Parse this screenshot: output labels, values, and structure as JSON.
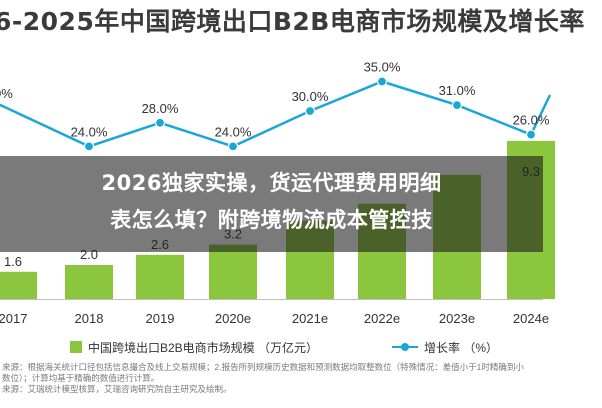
{
  "chart_data": {
    "type": "bar",
    "title": "6-2025年中国跨境出口B2B电商市场规模及增长率",
    "categories": [
      "2017",
      "2018",
      "2019",
      "2020e",
      "2021e",
      "2022e",
      "2023e",
      "2024e"
    ],
    "series": [
      {
        "name": "中国跨境出口B2B电商市场规模 （万亿元）",
        "type": "bar",
        "values": [
          1.6,
          2.0,
          2.6,
          3.2,
          null,
          null,
          null,
          9.3
        ],
        "value_labels": [
          "1.6",
          "2.0",
          "2.6",
          "3.2",
          "",
          "",
          "",
          "9.3"
        ]
      },
      {
        "name": "增长率 （%）",
        "type": "line",
        "values": [
          null,
          24.0,
          28.0,
          24.0,
          30.0,
          35.0,
          31.0,
          26.0
        ],
        "value_labels": [
          "",
          "24.0%",
          "28.0%",
          "24.0%",
          "30.0%",
          "35.0%",
          "31.0%",
          "26.0%"
        ]
      }
    ],
    "xlabel": "",
    "ylabel": "",
    "legend_position": "bottom",
    "grid": false,
    "colors": {
      "bar": "#8cc63f",
      "line": "#1aa7d8"
    }
  },
  "left_edge_label": "0%",
  "overlay": {
    "line1": "2026独家实操，货运代理费用明细",
    "line2": "表怎么填？附跨境物流成本管控技"
  },
  "notes": [
    "来源：根据海关统计口径包括信息撮合及线上交易规模；2.报告所列规模历史数据和预测数据均取整数位（特殊情况：差值小于1时精确到小",
    "数位）；计算均基于精确的数值进行计算。",
    "来源：艾瑞统计模型核算，艾瑞咨询研究院自主研究及绘制。"
  ]
}
